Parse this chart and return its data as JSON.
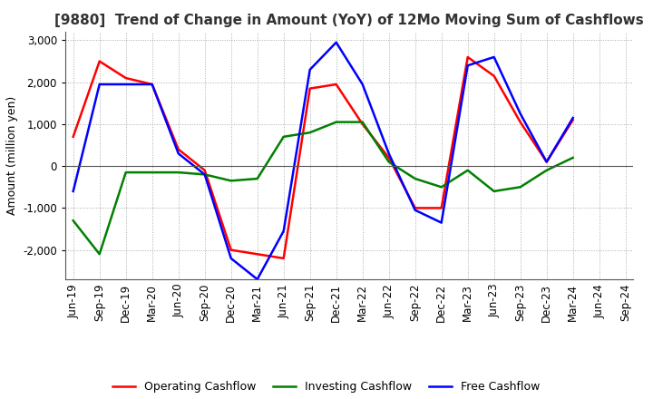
{
  "title": "[9880]  Trend of Change in Amount (YoY) of 12Mo Moving Sum of Cashflows",
  "ylabel": "Amount (million yen)",
  "ylim": [
    -2700,
    3200
  ],
  "yticks": [
    -2000,
    -1000,
    0,
    1000,
    2000,
    3000
  ],
  "x_labels": [
    "Jun-19",
    "Sep-19",
    "Dec-19",
    "Mar-20",
    "Jun-20",
    "Sep-20",
    "Dec-20",
    "Mar-21",
    "Jun-21",
    "Sep-21",
    "Dec-21",
    "Mar-22",
    "Jun-22",
    "Sep-22",
    "Dec-22",
    "Mar-23",
    "Jun-23",
    "Sep-23",
    "Dec-23",
    "Mar-24",
    "Jun-24",
    "Sep-24"
  ],
  "operating": [
    700,
    2500,
    2100,
    1950,
    400,
    -100,
    -2000,
    -2100,
    -2200,
    1850,
    1950,
    1000,
    200,
    -1000,
    -1000,
    2600,
    2150,
    1050,
    100,
    1100,
    null,
    null
  ],
  "investing": [
    -1300,
    -2100,
    -150,
    -150,
    -150,
    -200,
    -350,
    -300,
    700,
    800,
    1050,
    1050,
    100,
    -300,
    -500,
    -100,
    -600,
    -500,
    -100,
    200,
    null,
    null
  ],
  "free": [
    -600,
    1950,
    1950,
    1950,
    300,
    -200,
    -2200,
    -2700,
    -1550,
    2300,
    2950,
    1950,
    300,
    -1050,
    -1350,
    2400,
    2600,
    1250,
    100,
    1150,
    null,
    null
  ],
  "op_color": "#ff0000",
  "inv_color": "#008000",
  "free_color": "#0000ff",
  "bg_color": "#ffffff",
  "grid_color": "#aaaaaa",
  "title_fontsize": 11,
  "label_fontsize": 9,
  "tick_fontsize": 8.5
}
